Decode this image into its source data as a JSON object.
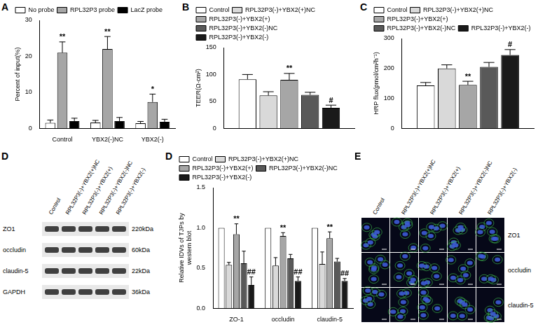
{
  "chart_data": [
    {
      "type": "bar",
      "panel_label": "A",
      "ylabel": "Percent of input(%)",
      "categories": [
        "Control",
        "YBX2(-)NC",
        "YBX2(-)"
      ],
      "series": [
        {
          "name": "No probe",
          "color": "#ffffff",
          "values": [
            1.5,
            1.6,
            1.4
          ],
          "errors": [
            0.8,
            0.6,
            0.5
          ]
        },
        {
          "name": "RPL32P3 probe",
          "color": "#a6a6a6",
          "values": [
            21,
            22,
            7.3
          ],
          "errors": [
            3,
            3.5,
            2.2
          ],
          "significance": [
            "**",
            "**",
            "*"
          ]
        },
        {
          "name": "LacZ probe",
          "color": "#000000",
          "values": [
            2,
            2,
            1.8
          ],
          "errors": [
            0.8,
            1,
            0.7
          ]
        }
      ],
      "ylim": [
        0,
        30
      ],
      "yticks": [
        0,
        10,
        20,
        30
      ],
      "grid": false,
      "legend": "top-left"
    },
    {
      "type": "bar",
      "panel_label": "B",
      "ylabel": "TEER(Ω·cm²)",
      "categories": [
        null
      ],
      "series": [
        {
          "name": "Control",
          "color": "#ffffff",
          "values": [
            91
          ],
          "errors": [
            9
          ]
        },
        {
          "name": "RPL32P3(-)+YBX2(+)NC",
          "color": "#d9d9d9",
          "values": [
            61
          ],
          "errors": [
            7
          ]
        },
        {
          "name": "RPL32P3(-)+YBX2(+)",
          "color": "#a6a6a6",
          "values": [
            90
          ],
          "errors": [
            12
          ],
          "significance": [
            "**"
          ]
        },
        {
          "name": "RPL32P3(-)+YBX2(-)NC",
          "color": "#595959",
          "values": [
            62
          ],
          "errors": [
            5
          ]
        },
        {
          "name": "RPL32P3(-)+YBX2(-)",
          "color": "#1a1a1a",
          "values": [
            38
          ],
          "errors": [
            5
          ],
          "significance": [
            "#"
          ]
        }
      ],
      "ylim": [
        0,
        150
      ],
      "yticks": [
        0,
        50,
        100,
        150
      ],
      "grid": false,
      "legend": "top-left"
    },
    {
      "type": "bar",
      "panel_label": "C",
      "ylabel": "HRP flux(pmol/cm²h⁻¹)",
      "categories": [
        null
      ],
      "series": [
        {
          "name": "Control",
          "color": "#ffffff",
          "values": [
            143
          ],
          "errors": [
            10
          ]
        },
        {
          "name": "RPL32P3(-)+YBX2(+)NC",
          "color": "#d9d9d9",
          "values": [
            200
          ],
          "errors": [
            12
          ]
        },
        {
          "name": "RPL32P3(-)+YBX2(+)",
          "color": "#a6a6a6",
          "values": [
            145
          ],
          "errors": [
            12
          ],
          "significance": [
            "**"
          ]
        },
        {
          "name": "RPL32P3(-)+YBX2(-)NC",
          "color": "#595959",
          "values": [
            205
          ],
          "errors": [
            15
          ]
        },
        {
          "name": "RPL32P3(-)+YBX2(-)",
          "color": "#1a1a1a",
          "values": [
            245
          ],
          "errors": [
            18
          ],
          "significance": [
            "#"
          ]
        }
      ],
      "ylim": [
        0,
        300
      ],
      "yticks": [
        0,
        100,
        200,
        300
      ],
      "grid": false,
      "legend": "top-left"
    },
    {
      "type": "bar",
      "panel_label": "D",
      "ylabel": "Relative IDVs of TJPs by western blot",
      "categories": [
        "ZO-1",
        "occludin",
        "claudin-5"
      ],
      "series": [
        {
          "name": "Control",
          "color": "#ffffff",
          "values": [
            1,
            1,
            1
          ],
          "errors": [
            0,
            0,
            0
          ]
        },
        {
          "name": "RPL32P3(-)+YBX2(+)NC",
          "color": "#d9d9d9",
          "values": [
            0.54,
            0.53,
            0.55
          ],
          "errors": [
            0.03,
            0.1,
            0.15
          ]
        },
        {
          "name": "RPL32P3(-)+YBX2(+)",
          "color": "#a6a6a6",
          "values": [
            0.92,
            0.9,
            0.87
          ],
          "errors": [
            0.13,
            0.04,
            0.08
          ],
          "significance": [
            "**",
            "**",
            "**"
          ]
        },
        {
          "name": "RPL32P3(-)+YBX2(-)NC",
          "color": "#595959",
          "values": [
            0.56,
            0.62,
            0.58
          ],
          "errors": [
            0.15,
            0.05,
            0.04
          ]
        },
        {
          "name": "RPL32P3(-)+YBX2(-)",
          "color": "#1a1a1a",
          "values": [
            0.29,
            0.34,
            0.34
          ],
          "errors": [
            0.1,
            0.05,
            0.03
          ],
          "significance": [
            "##",
            "##",
            "##"
          ]
        }
      ],
      "ylim": [
        0,
        1.5
      ],
      "yticks": [
        {
          "value": 0,
          "label": "0.0"
        },
        0.5,
        {
          "value": 1,
          "label": "1.0"
        },
        1.5
      ],
      "grid": false,
      "legend": "top-left"
    }
  ],
  "blot": {
    "lanes": [
      "Control",
      "RPL32P3(-)+YBX2(+)NC",
      "RPL32P3(-)+YBX2(+)",
      "RPL32P3(-)+YBX2(-)NC",
      "RPL32P3(-)+YBX2(-)"
    ],
    "rows": [
      {
        "name": "ZO1",
        "size": "220kDa"
      },
      {
        "name": "occludin",
        "size": "60kDa"
      },
      {
        "name": "claudin-5",
        "size": "22kDa"
      },
      {
        "name": "GAPDH",
        "size": "36kDa"
      }
    ]
  },
  "images": {
    "panel_label": "E",
    "columns": [
      "Control",
      "RPL32P3(-)+YBX2(+)NC",
      "RPL32P3(-)+YBX2(+)",
      "RPL32P3(-)+YBX2(-)NC",
      "RPL32P3(-)+YBX2(-)"
    ],
    "rows": [
      "ZO1",
      "occludin",
      "claudin-5"
    ]
  }
}
